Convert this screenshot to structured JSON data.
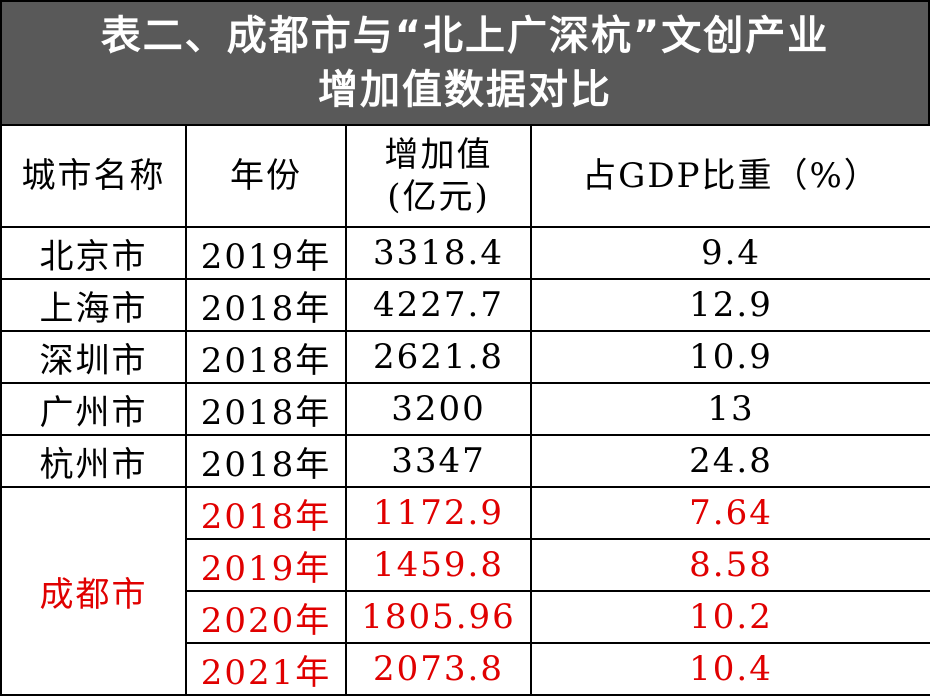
{
  "title": [
    "表二、成都市与“北上广深杭”文创产业",
    "增加值数据对比"
  ],
  "table": {
    "header": [
      "城市名称",
      "年份",
      [
        "增加值",
        "(亿元)"
      ],
      "占GDP比重（%）"
    ],
    "rows": [
      [
        "北京市",
        "2019年",
        3318.4,
        9.4
      ],
      [
        "上海市",
        "2018年",
        4227.7,
        12.9
      ],
      [
        "深圳市",
        "2018年",
        2621.8,
        10.9
      ],
      [
        "广州市",
        "2018年",
        3200,
        13
      ],
      [
        "杭州市",
        "2018年",
        3347,
        24.8
      ]
    ],
    "group": {
      "city": "成都市",
      "rows": [
        [
          "2018年",
          1172.9,
          7.64
        ],
        [
          "2019年",
          1459.8,
          8.58
        ],
        [
          "2020年",
          1805.96,
          10.2
        ],
        [
          "2021年",
          2073.8,
          10.4
        ]
      ]
    }
  }
}
